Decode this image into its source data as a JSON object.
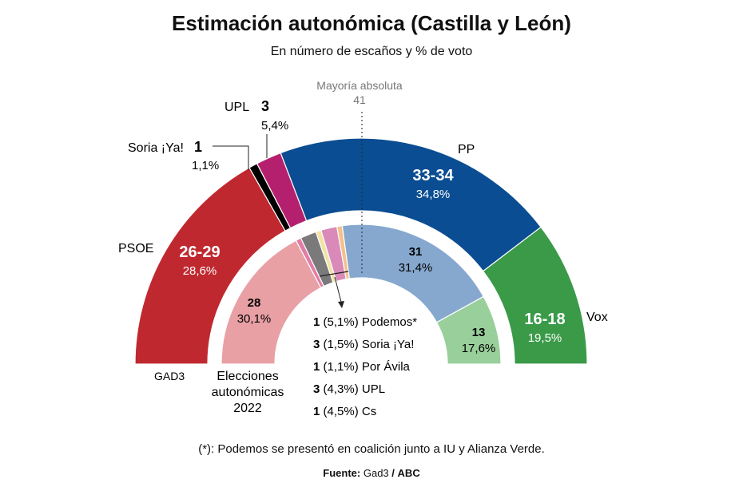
{
  "title": "Estimación autonómica (Castilla y León)",
  "subtitle": "En número de escaños y % de voto",
  "majority": {
    "label": "Mayoría absoluta",
    "value": "41"
  },
  "inner_ring_label": [
    "Elecciones",
    "autonómicas",
    "2022"
  ],
  "outer_ring_source": "GAD3",
  "footnote": "(*): Podemos se presentó en coalición junto a IU y Alianza Verde.",
  "source": {
    "prefix": "Fuente:",
    "name1": "Gad3",
    "sep": "/",
    "name2": "ABC"
  },
  "colors": {
    "PSOE": "#c0282f",
    "Soria": "#000000",
    "UPL": "#b5206e",
    "PP": "#0a4d92",
    "Vox": "#3a9a48",
    "PSOE_2022": "#e8a0a5",
    "Podemos_2022": "#e37ca4",
    "Soria_2022": "#7a7a7a",
    "PorAvila_2022": "#f1e3a3",
    "UPL_2022": "#d98ab8",
    "Cs_2022": "#f5c08a",
    "PP_2022": "#86a8cf",
    "Vox_2022": "#98cf9a"
  },
  "chart_data": [
    {
      "type": "hemicycle",
      "name": "GAD3",
      "total_seats": 81,
      "majority": 41,
      "parties": [
        {
          "party": "PSOE",
          "seats": "26-29",
          "seats_mid": 27.5,
          "vote": "28,6%"
        },
        {
          "party": "Soria ¡Ya!",
          "seats": "1",
          "seats_mid": 1,
          "vote": "1,1%"
        },
        {
          "party": "UPL",
          "seats": "3",
          "seats_mid": 3,
          "vote": "5,4%"
        },
        {
          "party": "PP",
          "seats": "33-34",
          "seats_mid": 33.5,
          "vote": "34,8%"
        },
        {
          "party": "Vox",
          "seats": "16-18",
          "seats_mid": 17,
          "vote": "19,5%"
        }
      ]
    },
    {
      "type": "hemicycle",
      "name": "Elecciones autonómicas 2022",
      "total_seats": 81,
      "parties": [
        {
          "party": "PSOE",
          "seats": "28",
          "seats_mid": 28,
          "vote": "30,1%"
        },
        {
          "party": "Podemos*",
          "seats": "1",
          "seats_mid": 1,
          "vote": "(5,1%)"
        },
        {
          "party": "Soria ¡Ya!",
          "seats": "3",
          "seats_mid": 3,
          "vote": "(1,5%)"
        },
        {
          "party": "Por Ávila",
          "seats": "1",
          "seats_mid": 1,
          "vote": "(1,1%)"
        },
        {
          "party": "UPL",
          "seats": "3",
          "seats_mid": 3,
          "vote": "(4,3%)"
        },
        {
          "party": "Cs",
          "seats": "1",
          "seats_mid": 1,
          "vote": "(4,5%)"
        },
        {
          "party": "PP",
          "seats": "31",
          "seats_mid": 31,
          "vote": "31,4%"
        },
        {
          "party": "Vox",
          "seats": "13",
          "seats_mid": 13,
          "vote": "17,6%"
        }
      ]
    }
  ],
  "outer_labels": {
    "PSOE": {
      "name": "PSOE",
      "seats": "26-29",
      "vote": "28,6%"
    },
    "Soria": {
      "name": "Soria ¡Ya!",
      "seats": "1",
      "vote": "1,1%"
    },
    "UPL": {
      "name": "UPL",
      "seats": "3",
      "vote": "5,4%"
    },
    "PP": {
      "name": "PP",
      "seats": "33-34",
      "vote": "34,8%"
    },
    "Vox": {
      "name": "Vox",
      "seats": "16-18",
      "vote": "19,5%"
    }
  },
  "inner_labels": {
    "PSOE": {
      "seats": "28",
      "vote": "30,1%"
    },
    "PP": {
      "seats": "31",
      "vote": "31,4%"
    },
    "Vox": {
      "seats": "13",
      "vote": "17,6%"
    }
  },
  "small_parties": [
    {
      "seats": "1",
      "vote": "(5,1%)",
      "name": "Podemos*"
    },
    {
      "seats": "3",
      "vote": "(1,5%)",
      "name": "Soria ¡Ya!"
    },
    {
      "seats": "1",
      "vote": "(1,1%)",
      "name": "Por Ávila"
    },
    {
      "seats": "3",
      "vote": "(4,3%)",
      "name": "UPL"
    },
    {
      "seats": "1",
      "vote": "(4,5%)",
      "name": "Cs"
    }
  ]
}
